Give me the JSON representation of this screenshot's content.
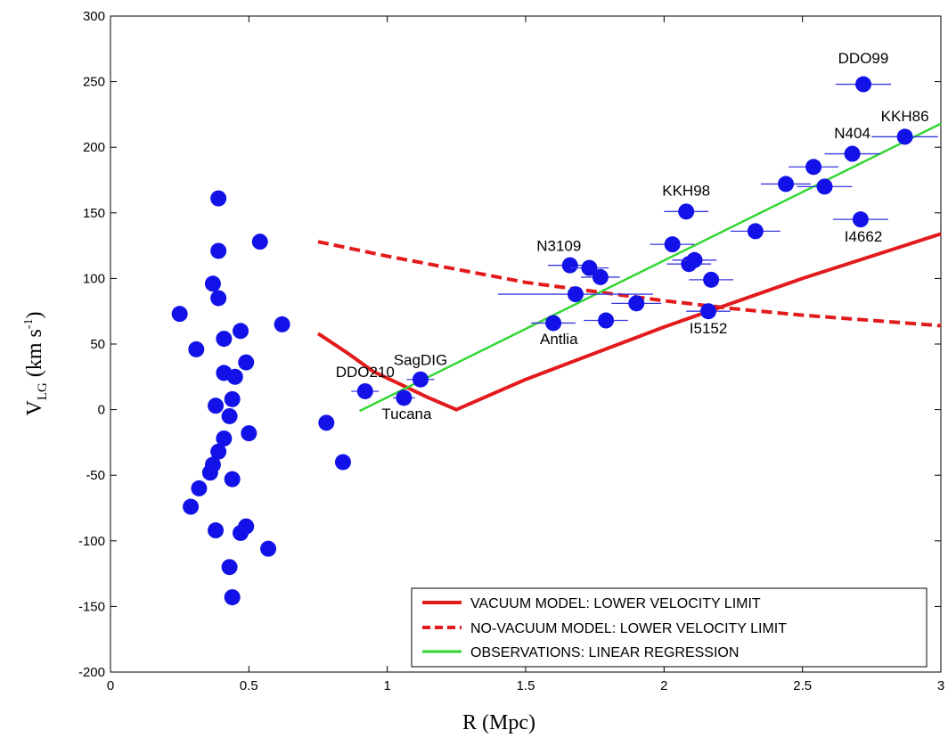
{
  "chart_data": {
    "type": "scatter",
    "xlabel": "R (Mpc)",
    "ylabel": "V_LG (km s^-1)",
    "xlim": [
      0,
      3
    ],
    "ylim": [
      -200,
      300
    ],
    "x_ticks": [
      "0",
      "0.5",
      "1",
      "1.5",
      "2",
      "2.5",
      "3"
    ],
    "y_ticks": [
      "-200",
      "-150",
      "-100",
      "-50",
      "0",
      "50",
      "100",
      "150",
      "200",
      "250",
      "300"
    ],
    "grid": false,
    "legend_position": "bottom-right",
    "colors": {
      "points": "#1212e8",
      "error_bars": "#3a3ae0",
      "vacuum": "#e31a1c",
      "novacuum": "#e31a1c",
      "regression": "#33d633"
    },
    "series": [
      {
        "name": "VACUUM MODEL: LOWER VELOCITY LIMIT",
        "style": "solid",
        "points": [
          [
            0.75,
            58
          ],
          [
            0.85,
            44
          ],
          [
            0.95,
            29
          ],
          [
            1.05,
            19
          ],
          [
            1.15,
            9
          ],
          [
            1.25,
            0
          ],
          [
            1.5,
            23
          ],
          [
            2.0,
            63
          ],
          [
            2.5,
            100
          ],
          [
            3.0,
            134
          ]
        ]
      },
      {
        "name": "NO-VACUUM MODEL: LOWER VELOCITY LIMIT",
        "style": "dashed",
        "points": [
          [
            0.75,
            128
          ],
          [
            1.0,
            117
          ],
          [
            1.25,
            107
          ],
          [
            1.5,
            97
          ],
          [
            1.75,
            90
          ],
          [
            2.0,
            83
          ],
          [
            2.25,
            77
          ],
          [
            2.5,
            72
          ],
          [
            2.75,
            68
          ],
          [
            3.0,
            64
          ]
        ]
      },
      {
        "name": "OBSERVATIONS:  LINEAR  REGRESSION",
        "style": "solid",
        "points": [
          [
            0.9,
            -1
          ],
          [
            3.0,
            218
          ]
        ]
      }
    ],
    "galaxies": [
      {
        "x": 0.25,
        "y": 73,
        "err": 0
      },
      {
        "x": 0.31,
        "y": 46,
        "err": 0
      },
      {
        "x": 0.32,
        "y": -60,
        "err": 0
      },
      {
        "x": 0.29,
        "y": -74,
        "err": 0
      },
      {
        "x": 0.36,
        "y": -48,
        "err": 0
      },
      {
        "x": 0.37,
        "y": -42,
        "err": 0
      },
      {
        "x": 0.38,
        "y": -92,
        "err": 0
      },
      {
        "x": 0.37,
        "y": 96,
        "err": 0
      },
      {
        "x": 0.38,
        "y": 3,
        "err": 0
      },
      {
        "x": 0.39,
        "y": 85,
        "err": 0
      },
      {
        "x": 0.39,
        "y": 121,
        "err": 0
      },
      {
        "x": 0.39,
        "y": 161,
        "err": 0
      },
      {
        "x": 0.39,
        "y": -32,
        "err": 0
      },
      {
        "x": 0.41,
        "y": 54,
        "err": 0
      },
      {
        "x": 0.41,
        "y": 28,
        "err": 0
      },
      {
        "x": 0.41,
        "y": -22,
        "err": 0
      },
      {
        "x": 0.43,
        "y": -120,
        "err": 0
      },
      {
        "x": 0.43,
        "y": -5,
        "err": 0
      },
      {
        "x": 0.44,
        "y": -143,
        "err": 0
      },
      {
        "x": 0.44,
        "y": 8,
        "err": 0
      },
      {
        "x": 0.44,
        "y": -53,
        "err": 0
      },
      {
        "x": 0.45,
        "y": 25,
        "err": 0
      },
      {
        "x": 0.47,
        "y": 60,
        "err": 0
      },
      {
        "x": 0.47,
        "y": -94,
        "err": 0
      },
      {
        "x": 0.49,
        "y": 36,
        "err": 0
      },
      {
        "x": 0.49,
        "y": -89,
        "err": 0
      },
      {
        "x": 0.5,
        "y": -18,
        "err": 0
      },
      {
        "x": 0.54,
        "y": 128,
        "err": 0
      },
      {
        "x": 0.57,
        "y": -106,
        "err": 0
      },
      {
        "x": 0.62,
        "y": 65,
        "err": 0
      },
      {
        "x": 0.78,
        "y": -10,
        "err": 0
      },
      {
        "x": 0.84,
        "y": -40,
        "err": 0
      },
      {
        "x": 0.92,
        "y": 14,
        "err": 0.05
      },
      {
        "x": 1.06,
        "y": 9,
        "err": 0.04
      },
      {
        "x": 1.12,
        "y": 23,
        "err": 0.05
      },
      {
        "x": 1.6,
        "y": 66,
        "err": 0.08
      },
      {
        "x": 1.66,
        "y": 110,
        "err": 0.08
      },
      {
        "x": 1.68,
        "y": 88,
        "err": 0.28
      },
      {
        "x": 1.73,
        "y": 108,
        "err": 0.07
      },
      {
        "x": 1.77,
        "y": 101,
        "err": 0.07
      },
      {
        "x": 1.79,
        "y": 68,
        "err": 0.08
      },
      {
        "x": 1.9,
        "y": 81,
        "err": 0.09
      },
      {
        "x": 2.03,
        "y": 126,
        "err": 0.08
      },
      {
        "x": 2.08,
        "y": 151,
        "err": 0.08
      },
      {
        "x": 2.09,
        "y": 111,
        "err": 0.08
      },
      {
        "x": 2.11,
        "y": 114,
        "err": 0.08
      },
      {
        "x": 2.16,
        "y": 75,
        "err": 0.08
      },
      {
        "x": 2.17,
        "y": 99,
        "err": 0.08
      },
      {
        "x": 2.33,
        "y": 136,
        "err": 0.09
      },
      {
        "x": 2.44,
        "y": 172,
        "err": 0.09
      },
      {
        "x": 2.54,
        "y": 185,
        "err": 0.09
      },
      {
        "x": 2.58,
        "y": 170,
        "err": 0.1
      },
      {
        "x": 2.68,
        "y": 195,
        "err": 0.1
      },
      {
        "x": 2.71,
        "y": 145,
        "err": 0.1
      },
      {
        "x": 2.72,
        "y": 248,
        "err": 0.1
      },
      {
        "x": 2.87,
        "y": 208,
        "err": 0.12
      }
    ],
    "annotations": [
      {
        "text": "DDO99",
        "x": 2.72,
        "y": 264
      },
      {
        "text": "KKH86",
        "x": 2.87,
        "y": 220
      },
      {
        "text": "N404",
        "x": 2.68,
        "y": 207
      },
      {
        "text": "KKH98",
        "x": 2.08,
        "y": 163
      },
      {
        "text": "N3109",
        "x": 1.62,
        "y": 121
      },
      {
        "text": "I4662",
        "x": 2.72,
        "y": 128
      },
      {
        "text": "Antlia",
        "x": 1.62,
        "y": 50
      },
      {
        "text": "I5152",
        "x": 2.16,
        "y": 58
      },
      {
        "text": "SagDIG",
        "x": 1.12,
        "y": 34
      },
      {
        "text": "DDO210",
        "x": 0.92,
        "y": 25
      },
      {
        "text": "Tucana",
        "x": 1.07,
        "y": -7
      }
    ]
  }
}
